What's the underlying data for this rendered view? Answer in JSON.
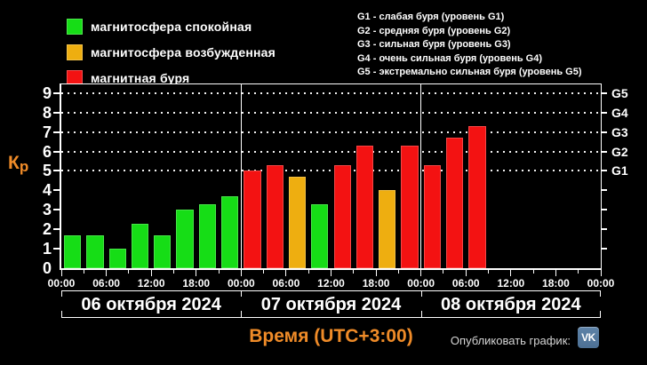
{
  "colors": {
    "background": "#000000",
    "text": "#ffffff",
    "accent_orange": "#ef8b28",
    "vk_blue": "#56789e",
    "quiet_green": "#16dd16",
    "excited_yellow": "#eeae10",
    "storm_red": "#f31212"
  },
  "legend": {
    "items": [
      {
        "label": "магнитосфера спокойная",
        "status": "quiet"
      },
      {
        "label": "магнитосфера возбужденная",
        "status": "excited"
      },
      {
        "label": "магнитная буря",
        "status": "storm"
      }
    ]
  },
  "storm_levels": {
    "lines": [
      "G1 - слабая буря (уровень G1)",
      "G2 - средняя буря (уровень G2)",
      "G3 - сильная буря (уровень G3)",
      "G4 - очень сильная буря (уровень G4)",
      "G5 - экстремально сильная буря (уровень G5)"
    ]
  },
  "axis": {
    "y_title_k": "К",
    "y_title_p": "р",
    "y_ticks": [
      0,
      1,
      2,
      3,
      4,
      5,
      6,
      7,
      8,
      9
    ],
    "right_labels": [
      {
        "label": "G5",
        "kp": 9
      },
      {
        "label": "G4",
        "kp": 8
      },
      {
        "label": "G3",
        "kp": 7
      },
      {
        "label": "G2",
        "kp": 6
      },
      {
        "label": "G1",
        "kp": 5
      }
    ],
    "x_title": "Время (UTC+3:00)"
  },
  "chart_data": {
    "type": "bar",
    "ylabel": "Кр",
    "xlabel": "Время (UTC+3:00)",
    "ylim": [
      0,
      9.45
    ],
    "grid_values": [
      5,
      6,
      7,
      8,
      9
    ],
    "grid": "dotted horizontal lines at Kp 5-9 (G1-G5)",
    "interval_hours": 3,
    "slots_per_day": 8,
    "x_tick_labels": [
      "00:00",
      "06:00",
      "12:00",
      "18:00",
      "00:00",
      "06:00",
      "12:00",
      "18:00",
      "00:00",
      "06:00",
      "12:00",
      "18:00",
      "00:00"
    ],
    "color_map": {
      "quiet": "#16dd16",
      "excited": "#eeae10",
      "storm": "#f31212"
    },
    "days": [
      {
        "date": "06 октября 2024",
        "values": [
          1.7,
          1.7,
          1.0,
          2.3,
          1.7,
          3.0,
          3.3,
          3.7
        ],
        "status": [
          "quiet",
          "quiet",
          "quiet",
          "quiet",
          "quiet",
          "quiet",
          "quiet",
          "quiet"
        ]
      },
      {
        "date": "07 октября 2024",
        "values": [
          5.0,
          5.3,
          4.7,
          3.3,
          5.3,
          6.3,
          4.0,
          6.3
        ],
        "status": [
          "storm",
          "storm",
          "excited",
          "quiet",
          "storm",
          "storm",
          "excited",
          "storm"
        ]
      },
      {
        "date": "08 октября 2024",
        "values": [
          5.3,
          6.7,
          7.3,
          null,
          null,
          null,
          null,
          null
        ],
        "status": [
          "storm",
          "storm",
          "storm",
          null,
          null,
          null,
          null,
          null
        ]
      }
    ]
  },
  "footer": {
    "share_label": "Опубликовать график:",
    "vk_icon_label": "VK"
  }
}
